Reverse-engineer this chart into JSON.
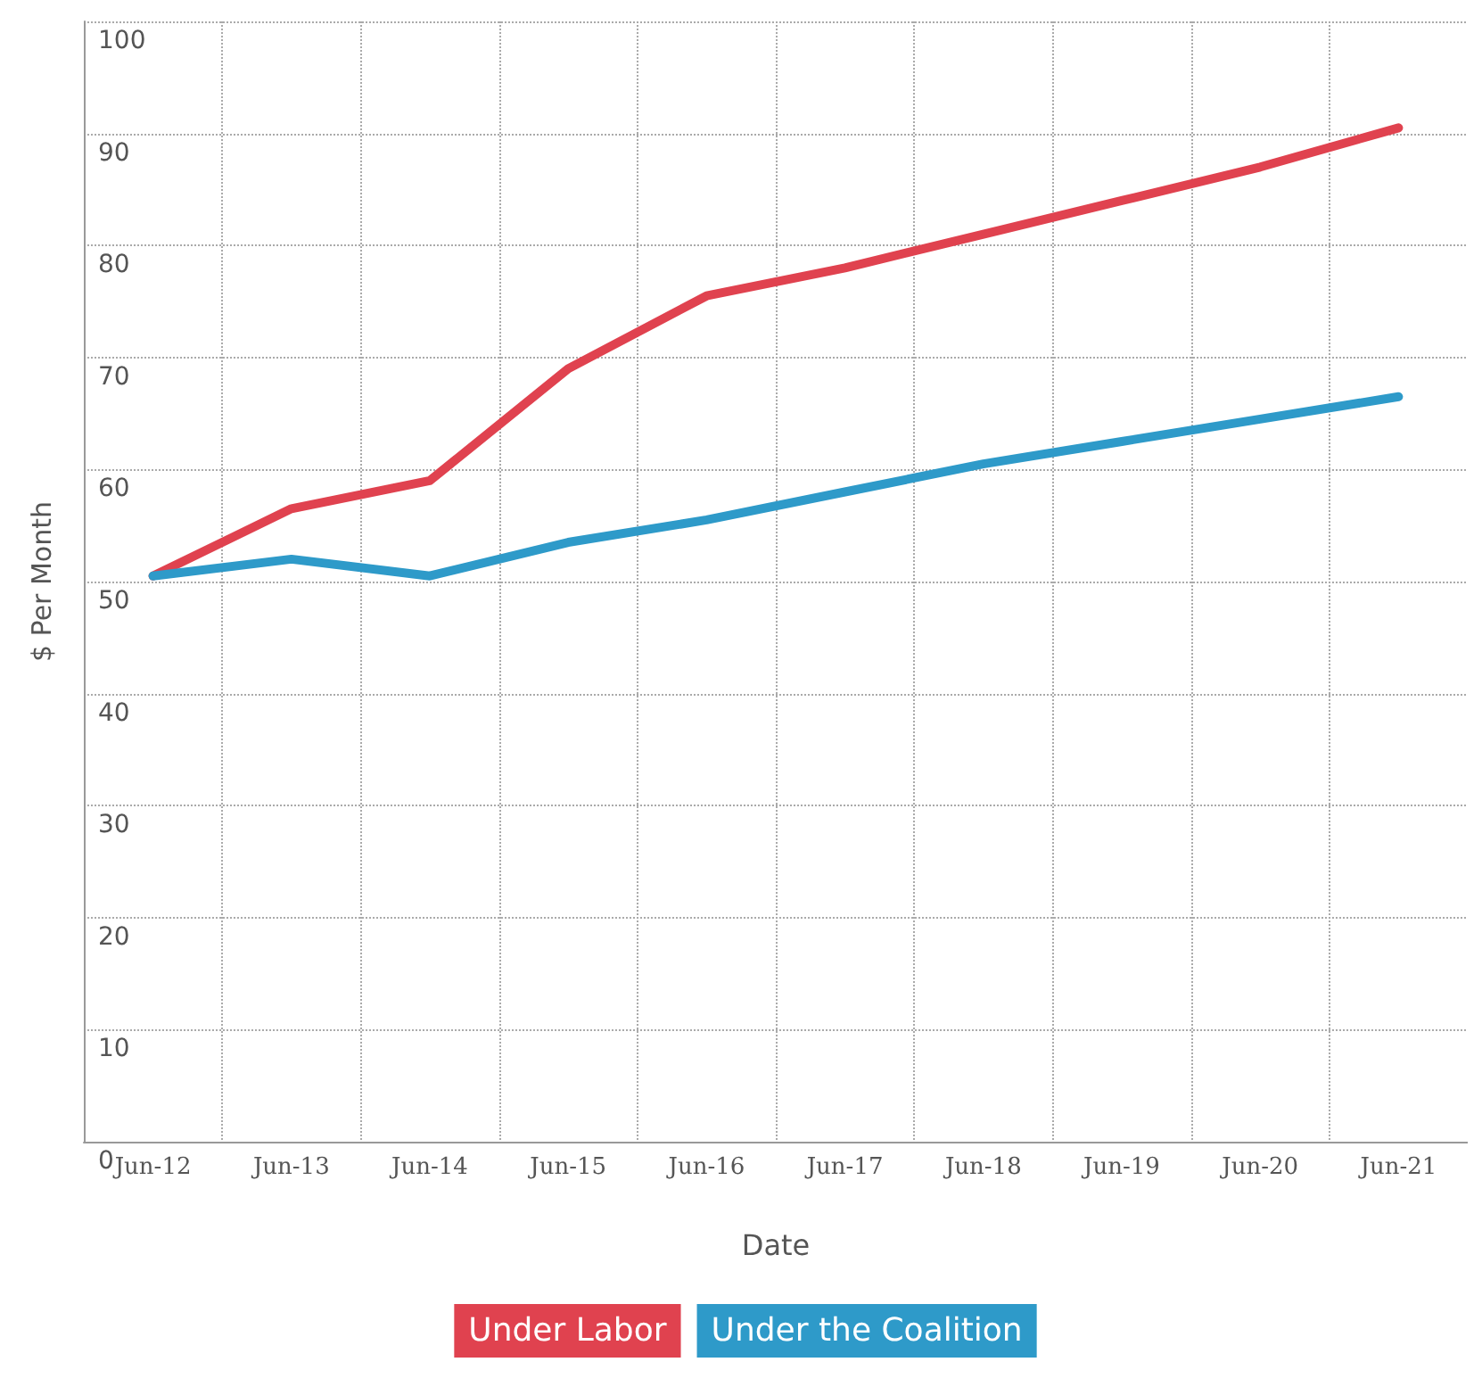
{
  "chart_data": {
    "type": "line",
    "xlabel": "Date",
    "ylabel": "$ Per Month",
    "categories": [
      "Jun-12",
      "Jun-13",
      "Jun-14",
      "Jun-15",
      "Jun-16",
      "Jun-17",
      "Jun-18",
      "Jun-19",
      "Jun-20",
      "Jun-21"
    ],
    "series": [
      {
        "name": "Under Labor",
        "color": "#e0424f",
        "values": [
          50.5,
          56.5,
          59,
          69,
          75.5,
          78,
          81,
          84,
          87,
          90.5
        ]
      },
      {
        "name": "Under the Coalition",
        "color": "#2e9ac9",
        "values": [
          50.5,
          52,
          50.5,
          53.5,
          55.5,
          58,
          60.5,
          62.5,
          64.5,
          66.5
        ]
      }
    ],
    "ylim": [
      0,
      100
    ],
    "yticks": [
      0,
      10,
      20,
      30,
      40,
      50,
      60,
      70,
      80,
      90,
      100
    ],
    "grid": true,
    "legend": "bottom",
    "marker": "none",
    "line_style": "solid"
  }
}
